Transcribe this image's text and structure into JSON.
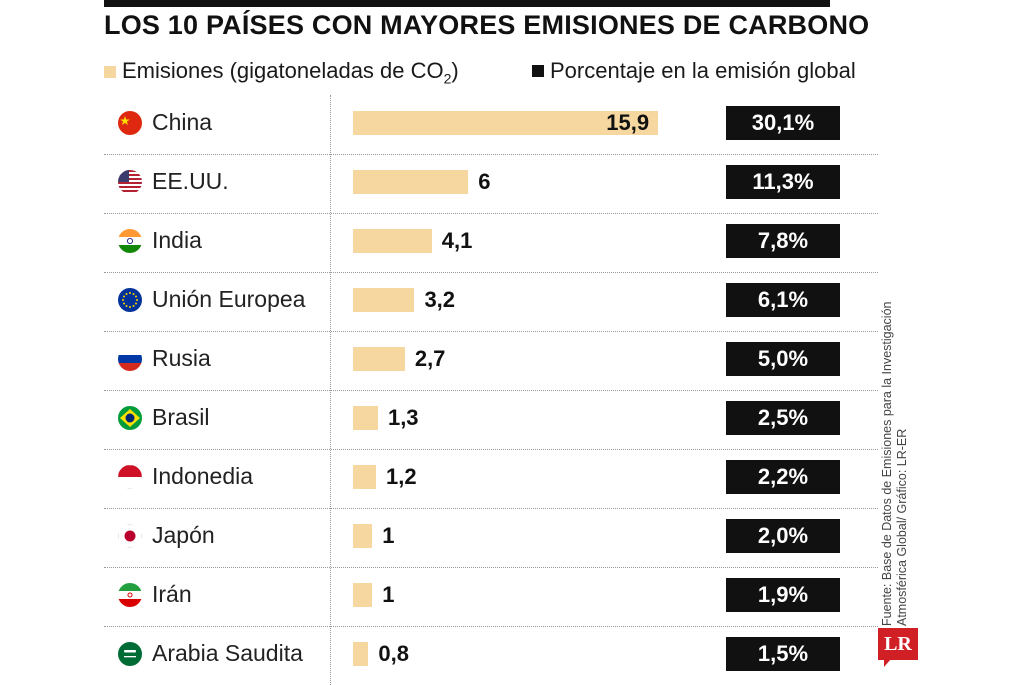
{
  "header": {
    "title": "LOS 10 PAÍSES CON MAYORES EMISIONES DE CARBONO"
  },
  "legend": {
    "emissions_label_pre": "Emisiones (gigatoneladas de CO",
    "emissions_label_sub": "2",
    "emissions_label_post": ")",
    "percent_label": "Porcentaje en la emisión global"
  },
  "colors": {
    "bar": "#f6d7a0",
    "percent_box": "#111111",
    "brand": "#d11f26"
  },
  "chart_data": {
    "type": "bar",
    "orientation": "horizontal",
    "categories": [
      "China",
      "EE.UU.",
      "India",
      "Unión Europea",
      "Rusia",
      "Brasil",
      "Indonedia",
      "Japón",
      "Irán",
      "Arabia Saudita"
    ],
    "series": [
      {
        "name": "Emisiones (gigatoneladas de CO2)",
        "values": [
          15.9,
          6,
          4.1,
          3.2,
          2.7,
          1.3,
          1.2,
          1,
          1,
          0.8
        ],
        "labels": [
          "15,9",
          "6",
          "4,1",
          "3,2",
          "2,7",
          "1,3",
          "1,2",
          "1",
          "1",
          "0,8"
        ]
      },
      {
        "name": "Porcentaje en la emisión global",
        "values": [
          30.1,
          11.3,
          7.8,
          6.1,
          5.0,
          2.5,
          2.2,
          2.0,
          1.9,
          1.5
        ],
        "labels": [
          "30,1%",
          "11,3%",
          "7,8%",
          "6,1%",
          "5,0%",
          "2,5%",
          "2,2%",
          "2,0%",
          "1,9%",
          "1,5%"
        ]
      }
    ],
    "flags": [
      "china-flag-icon",
      "usa-flag-icon",
      "india-flag-icon",
      "eu-flag-icon",
      "russia-flag-icon",
      "brazil-flag-icon",
      "indonesia-flag-icon",
      "japan-flag-icon",
      "iran-flag-icon",
      "saudi-flag-icon"
    ]
  },
  "source": {
    "text": "Fuente: Base de Datos de Emisiones para la Investigación Atmosférica Global/ Gráfico: LR-ER"
  },
  "logo": {
    "text": "LR"
  }
}
